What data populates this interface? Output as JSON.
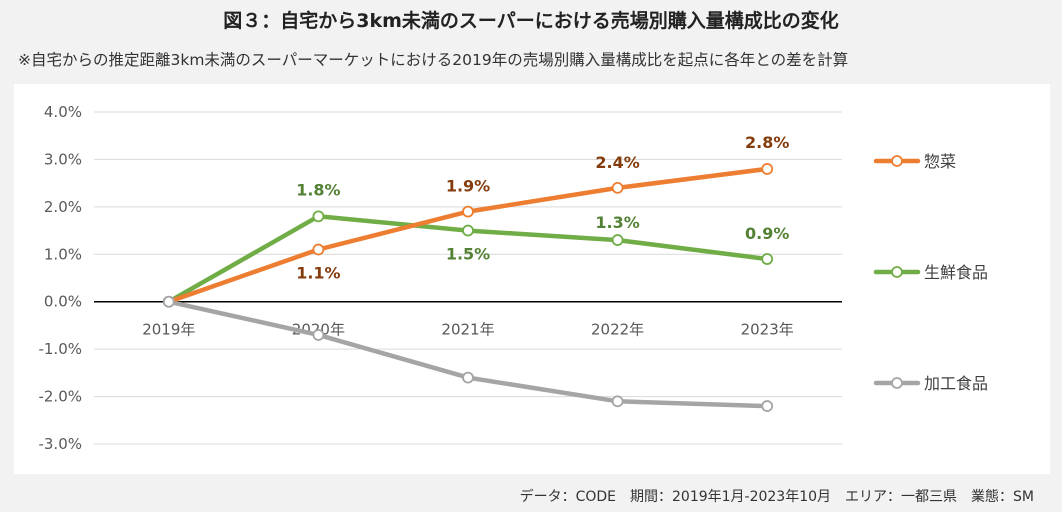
{
  "header": {
    "title": "図３：自宅から3km未満のスーパーにおける売場別購入量構成比の変化",
    "subtitle": "※自宅からの推定距離3km未満のスーパーマーケットにおける2019年の売場別購入量構成比を起点に各年との差を計算"
  },
  "footer": {
    "source": "データ：CODE　期間：2019年1月-2023年10月　エリア：一都三県　業態：SM"
  },
  "chart_data": {
    "type": "line",
    "categories": [
      "2019年",
      "2020年",
      "2021年",
      "2022年",
      "2023年"
    ],
    "ylim": [
      -3.0,
      4.0
    ],
    "yticks": [
      "4.0%",
      "3.0%",
      "2.0%",
      "1.0%",
      "0.0%",
      "-1.0%",
      "-2.0%",
      "-3.0%"
    ],
    "grid": true,
    "legend_position": "right",
    "series": [
      {
        "name": "惣菜",
        "color": "#ed7d31",
        "label_color": "#843c0c",
        "values": [
          0.0,
          1.1,
          1.9,
          2.4,
          2.8
        ],
        "labels": [
          "",
          "1.1%",
          "1.9%",
          "2.4%",
          "2.8%"
        ]
      },
      {
        "name": "生鮮食品",
        "color": "#70ad47",
        "label_color": "#548235",
        "values": [
          0.0,
          1.8,
          1.5,
          1.3,
          0.9
        ],
        "labels": [
          "",
          "1.8%",
          "1.5%",
          "1.3%",
          "0.9%"
        ]
      },
      {
        "name": "加工食品",
        "color": "#a5a5a5",
        "label_color": "#7f7f7f",
        "values": [
          0.0,
          -0.7,
          -1.6,
          -2.1,
          -2.2
        ],
        "labels": [
          "",
          "",
          "",
          "",
          ""
        ]
      }
    ]
  }
}
